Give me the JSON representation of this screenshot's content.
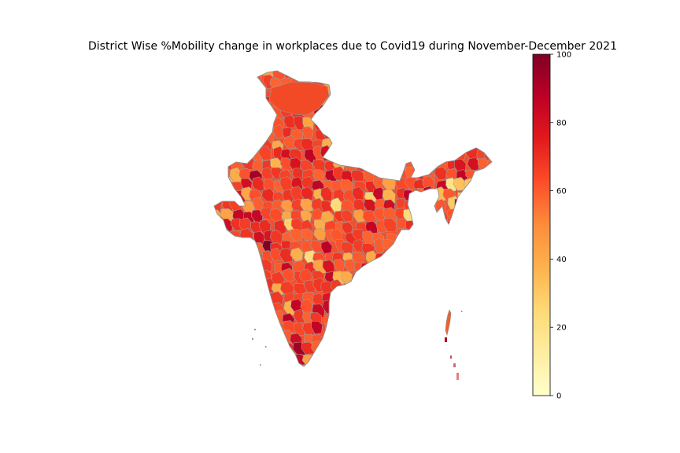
{
  "chart_data": {
    "type": "choropleth",
    "title": "District Wise %Mobility change in workplaces due to Covid19 during November-December 2021",
    "colorbar": {
      "colormap": "YlOrRd",
      "range": [
        0,
        100
      ],
      "ticks": [
        0,
        20,
        40,
        60,
        80,
        100
      ],
      "placement": "right"
    },
    "region": "India (district-level)",
    "typical_value_range": [
      20,
      100
    ],
    "dominant_value": 65,
    "colors": {
      "low": "#ffffcc",
      "mid": "#fd8d3c",
      "high": "#800026",
      "boundary": "#999999"
    }
  }
}
